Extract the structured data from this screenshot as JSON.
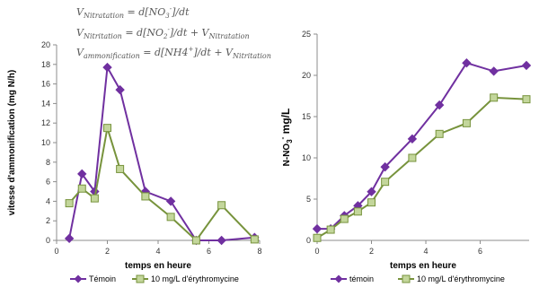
{
  "equations": [
    {
      "lhs": "V",
      "lhs_sub": "Nitratation",
      "rhs": " = d[N",
      "rhs_sub": "O",
      "rhs_sup": "-",
      "tail": "]/dt",
      "sub_after": "3"
    },
    {
      "lhs": "V",
      "lhs_sub": "Nitritation",
      "rhs": " = d[N",
      "rhs_sub": "O",
      "rhs_sup": "-",
      "tail": "]/dt + V",
      "tail_sub": "Nitratation",
      "sub_after": "2"
    },
    {
      "lhs": "V",
      "lhs_sub": "ammonification",
      "rhs": " = d[NH",
      "rhs_sub": "4",
      "rhs_sup": "+",
      "tail": "]/dt + V",
      "tail_sub": "Nitritation"
    }
  ],
  "chart_data": [
    {
      "type": "line",
      "xlabel": "temps en heure",
      "ylabel": "vitesse d'ammonification (mg N/h)",
      "xlim": [
        0,
        8
      ],
      "ylim": [
        0,
        20
      ],
      "xticks": [
        0,
        2,
        4,
        6,
        8
      ],
      "yticks": [
        0,
        2,
        4,
        6,
        8,
        10,
        12,
        14,
        16,
        18,
        20
      ],
      "grid": false,
      "legend_position": "bottom",
      "series": [
        {
          "name": "Témoin",
          "color": "#7030a0",
          "marker": "diamond",
          "x": [
            0.5,
            1,
            1.5,
            2,
            2.5,
            3.5,
            4.5,
            5.5,
            6.5,
            7.8
          ],
          "y": [
            0.2,
            6.8,
            5.0,
            17.7,
            15.4,
            5.0,
            4.0,
            0.0,
            0.0,
            0.3
          ]
        },
        {
          "name": "10 mg/L d'érythromycine",
          "color": "#77933c",
          "fill": "#c3d69b",
          "marker": "square",
          "x": [
            0.5,
            1,
            1.5,
            2,
            2.5,
            3.5,
            4.5,
            5.5,
            6.5,
            7.8
          ],
          "y": [
            3.8,
            5.3,
            4.3,
            11.5,
            7.3,
            4.5,
            2.4,
            0.0,
            3.6,
            0.1
          ]
        }
      ]
    },
    {
      "type": "line",
      "xlabel": "temps en heure",
      "ylabel": "N-NO3- mg/L",
      "xlim": [
        0,
        7.8
      ],
      "ylim": [
        0,
        25
      ],
      "xticks": [
        0,
        2,
        4,
        6
      ],
      "yticks": [
        0,
        5,
        10,
        15,
        20,
        25
      ],
      "grid": false,
      "legend_position": "bottom",
      "series": [
        {
          "name": "témoin",
          "color": "#7030a0",
          "marker": "diamond",
          "x": [
            0,
            0.5,
            1,
            1.5,
            2,
            2.5,
            3.5,
            4.5,
            5.5,
            6.5,
            7.7
          ],
          "y": [
            1.4,
            1.4,
            3.0,
            4.2,
            5.9,
            8.9,
            12.3,
            16.4,
            21.5,
            20.5,
            21.2
          ]
        },
        {
          "name": "10 mg/L d'érythromycine",
          "color": "#77933c",
          "fill": "#c3d69b",
          "marker": "square",
          "x": [
            0,
            0.5,
            1,
            1.5,
            2,
            2.5,
            3.5,
            4.5,
            5.5,
            6.5,
            7.7
          ],
          "y": [
            0.3,
            1.3,
            2.6,
            3.5,
            4.6,
            7.1,
            10.0,
            12.9,
            14.2,
            17.3,
            17.1
          ]
        }
      ]
    }
  ]
}
